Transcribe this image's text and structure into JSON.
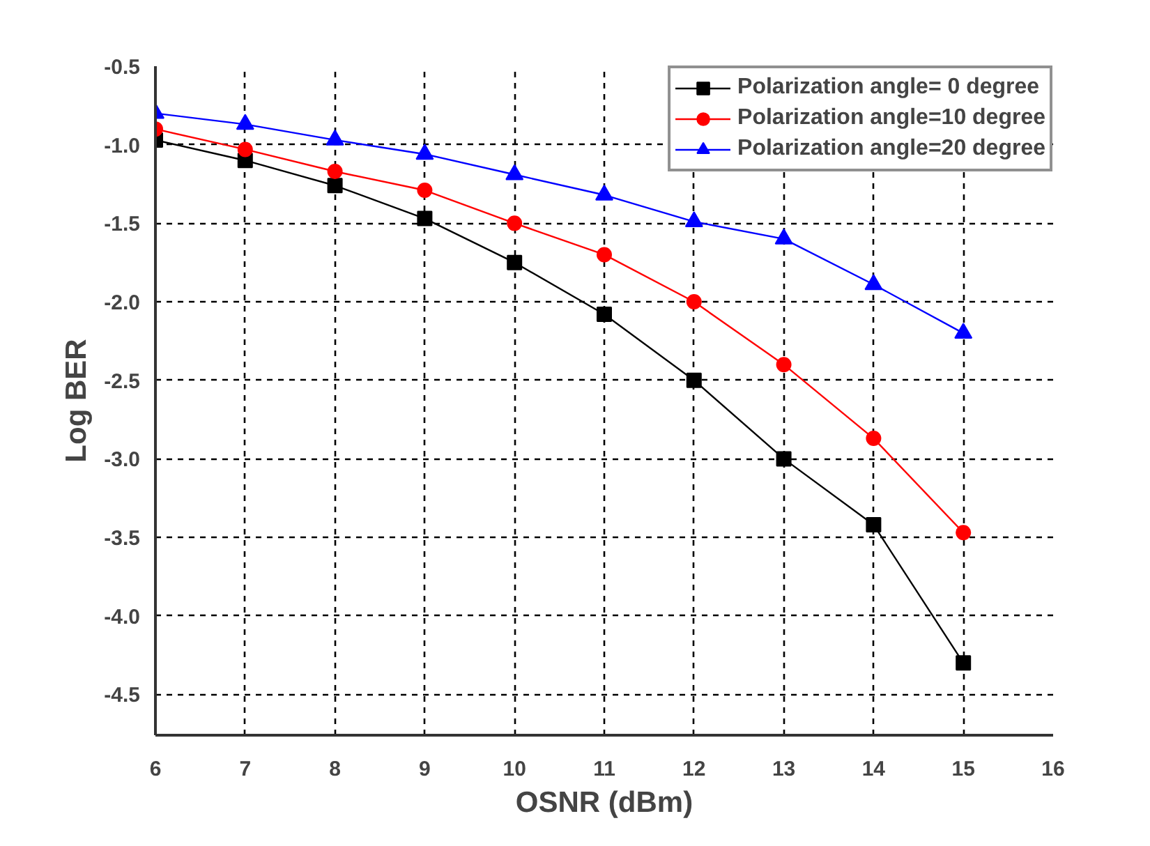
{
  "chart_data": {
    "type": "line",
    "xlabel": "OSNR (dBm)",
    "ylabel": "Log BER",
    "x": [
      6,
      7,
      8,
      9,
      10,
      11,
      12,
      13,
      14,
      15
    ],
    "series": [
      {
        "name": "Polarization angle= 0 degree",
        "color": "#000000",
        "marker": "square",
        "values": [
          -0.97,
          -1.1,
          -1.26,
          -1.47,
          -1.75,
          -2.08,
          -2.5,
          -3.0,
          -3.42,
          -4.3
        ]
      },
      {
        "name": "Polarization angle=10 degree",
        "color": "#ff0000",
        "marker": "circle",
        "values": [
          -0.9,
          -1.03,
          -1.17,
          -1.29,
          -1.5,
          -1.7,
          -2.0,
          -2.4,
          -2.87,
          -3.47
        ]
      },
      {
        "name": "Polarization angle=20 degree",
        "color": "#0000ff",
        "marker": "triangle",
        "values": [
          -0.8,
          -0.87,
          -0.97,
          -1.06,
          -1.19,
          -1.32,
          -1.49,
          -1.6,
          -1.89,
          -2.2
        ]
      }
    ],
    "xlim": [
      6,
      16
    ],
    "xticks": [
      6,
      7,
      8,
      9,
      10,
      11,
      12,
      13,
      14,
      15,
      16
    ],
    "ylim": [
      -4.76,
      -0.5
    ],
    "yticks": [
      {
        "value": -4.5,
        "label": "-4.5"
      },
      {
        "value": -4,
        "label": "-4.0"
      },
      {
        "value": -3.5,
        "label": "-3.5"
      },
      {
        "value": -3,
        "label": "-3.0"
      },
      {
        "value": -2.5,
        "label": "-2.5"
      },
      {
        "value": -2,
        "label": "-2.0"
      },
      {
        "value": -1.5,
        "label": "-1.5"
      },
      {
        "value": -1,
        "label": "-1.0"
      },
      {
        "value": -0.5,
        "label": "-0.5"
      }
    ],
    "grid": true,
    "legend": "top right",
    "line_style": "solid"
  }
}
